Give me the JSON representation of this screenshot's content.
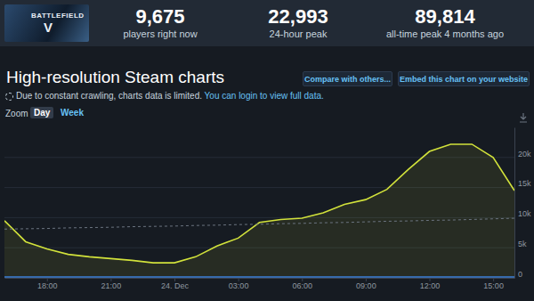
{
  "header": {
    "logo": [
      "BATTLEFIELD",
      "V"
    ],
    "stats": [
      {
        "value": "9,675",
        "label": "players right now"
      },
      {
        "value": "22,993",
        "label": "24-hour peak"
      },
      {
        "value": "89,814",
        "label": "all-time peak 4 months ago"
      }
    ]
  },
  "page": {
    "title": "High-resolution Steam charts",
    "buttons": [
      "Compare with others...",
      "Embed this chart on your website"
    ],
    "notice": "Due to constant crawling, charts data is limited.",
    "notice_link": "You can login to view full data.",
    "zoom_label": "Zoom",
    "zoom_options": [
      "Day",
      "Week"
    ]
  },
  "chart_data": {
    "type": "line",
    "x": [
      16,
      17,
      18,
      19,
      20,
      21,
      22,
      23,
      24,
      25,
      26,
      27,
      28,
      29,
      30,
      31,
      32,
      33,
      34,
      35,
      36,
      37,
      38,
      39,
      40
    ],
    "series": [
      {
        "type": "area",
        "color": "#d2e23b",
        "line_style": "solid",
        "values": [
          9500,
          6000,
          4800,
          3900,
          3500,
          3200,
          2900,
          2500,
          2500,
          3500,
          5300,
          6600,
          9200,
          9700,
          9900,
          10800,
          12200,
          13000,
          14700,
          18000,
          21000,
          22200,
          22200,
          20000,
          14500
        ]
      },
      {
        "type": "line",
        "color": "#6b7480",
        "line_style": "dashed",
        "values": [
          8100,
          8150,
          8200,
          8300,
          8350,
          8400,
          8500,
          8550,
          8600,
          8700,
          8750,
          8850,
          8900,
          9000,
          9050,
          9150,
          9200,
          9300,
          9400,
          9450,
          9550,
          9600,
          9700,
          9800,
          9900
        ]
      },
      {
        "type": "line",
        "color": "#3d7fd9",
        "line_style": "solid",
        "values": [
          150,
          150,
          150,
          150,
          150,
          150,
          150,
          150,
          150,
          150,
          150,
          150,
          150,
          150,
          150,
          150,
          150,
          150,
          150,
          150,
          150,
          150,
          150,
          150,
          150
        ]
      }
    ],
    "xlim": [
      16,
      40
    ],
    "xticks": [
      {
        "value": 18,
        "label": "18:00"
      },
      {
        "value": 21,
        "label": "21:00"
      },
      {
        "value": 24,
        "label": "24. Dec"
      },
      {
        "value": 27,
        "label": "03:00"
      },
      {
        "value": 30,
        "label": "06:00"
      },
      {
        "value": 33,
        "label": "09:00"
      },
      {
        "value": 36,
        "label": "12:00"
      },
      {
        "value": 39,
        "label": "15:00"
      }
    ],
    "ylim": [
      0,
      25000
    ],
    "yticks": [
      0,
      {
        "value": 5000,
        "label": "5k"
      },
      {
        "value": 10000,
        "label": "10k"
      },
      {
        "value": 15000,
        "label": "15k"
      },
      {
        "value": 20000,
        "label": "20k"
      }
    ],
    "grid": true
  }
}
